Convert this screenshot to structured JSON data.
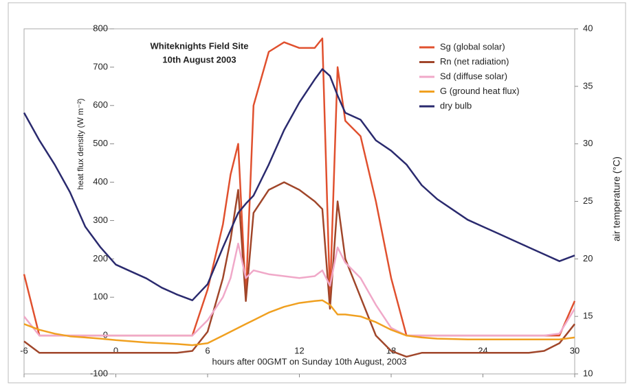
{
  "chart_data": {
    "type": "line",
    "title": "Whiteknights Field Site",
    "subtitle": "10th August 2003",
    "x_label": "hours after 00GMT on Sunday 10th August, 2003",
    "y_label": "heat flux density (W m⁻²)",
    "y2_label": "air temperature (°C)",
    "x": [
      -6,
      -5,
      -4,
      -3,
      -2,
      -1,
      0,
      1,
      2,
      3,
      4,
      5,
      6,
      7,
      7.5,
      8,
      8.5,
      9,
      10,
      11,
      12,
      13,
      13.5,
      14,
      14.5,
      15,
      16,
      17,
      18,
      19,
      20,
      21,
      22,
      23,
      24,
      25,
      26,
      27,
      28,
      29,
      30
    ],
    "xlim": [
      -6,
      30
    ],
    "xticks": [
      -6,
      0,
      6,
      12,
      18,
      24,
      30
    ],
    "ylim": [
      -100,
      800
    ],
    "yticks": [
      -100,
      0,
      100,
      200,
      300,
      400,
      500,
      600,
      700,
      800
    ],
    "y2lim": [
      10,
      40
    ],
    "y2ticks": [
      10,
      15,
      20,
      25,
      30,
      35,
      40
    ],
    "legend": "top-right",
    "series": [
      {
        "name": "Sg (global solar)",
        "color": "#e0502e",
        "values": [
          160,
          0,
          0,
          0,
          0,
          0,
          0,
          0,
          0,
          0,
          0,
          0,
          120,
          290,
          420,
          500,
          100,
          600,
          740,
          765,
          750,
          750,
          775,
          100,
          700,
          560,
          520,
          350,
          150,
          0,
          0,
          0,
          0,
          0,
          0,
          0,
          0,
          0,
          0,
          0,
          90
        ]
      },
      {
        "name": "Rn (net radiation)",
        "color": "#a0462a",
        "values": [
          -15,
          -45,
          -45,
          -45,
          -45,
          -45,
          -45,
          -45,
          -45,
          -45,
          -45,
          -40,
          10,
          150,
          250,
          380,
          90,
          320,
          380,
          400,
          380,
          350,
          330,
          70,
          350,
          200,
          100,
          0,
          -40,
          -55,
          -45,
          -45,
          -45,
          -45,
          -45,
          -45,
          -45,
          -45,
          -40,
          -20,
          30
        ]
      },
      {
        "name": "Sd (diffuse solar)",
        "color": "#f0a8c8",
        "values": [
          50,
          0,
          0,
          0,
          0,
          0,
          0,
          0,
          0,
          0,
          0,
          0,
          40,
          100,
          150,
          240,
          150,
          170,
          160,
          155,
          150,
          155,
          170,
          130,
          230,
          190,
          150,
          80,
          20,
          0,
          0,
          0,
          0,
          0,
          0,
          0,
          0,
          0,
          0,
          5,
          70
        ]
      },
      {
        "name": "G (ground heat flux)",
        "color": "#f0a020",
        "values": [
          30,
          15,
          5,
          -2,
          -5,
          -8,
          -12,
          -15,
          -18,
          -20,
          -22,
          -25,
          -20,
          0,
          10,
          20,
          30,
          40,
          60,
          75,
          85,
          90,
          92,
          80,
          55,
          55,
          50,
          35,
          15,
          0,
          -5,
          -8,
          -9,
          -10,
          -10,
          -10,
          -10,
          -10,
          -10,
          -10,
          -5
        ]
      },
      {
        "name": "dry bulb",
        "color": "#2a2a6e",
        "axis": "y2",
        "values": [
          32.7,
          30.3,
          28.2,
          25.8,
          22.8,
          21,
          19.5,
          18.9,
          18.3,
          17.5,
          16.9,
          16.4,
          17.8,
          21,
          22.5,
          24,
          24.8,
          25.5,
          28.2,
          31.2,
          33.6,
          35.6,
          36.5,
          35.9,
          34.2,
          32.7,
          32.1,
          30.3,
          29.4,
          28.2,
          26.4,
          25.2,
          24.3,
          23.4,
          22.8,
          22.2,
          21.6,
          21,
          20.4,
          19.8,
          20.3
        ]
      }
    ]
  }
}
